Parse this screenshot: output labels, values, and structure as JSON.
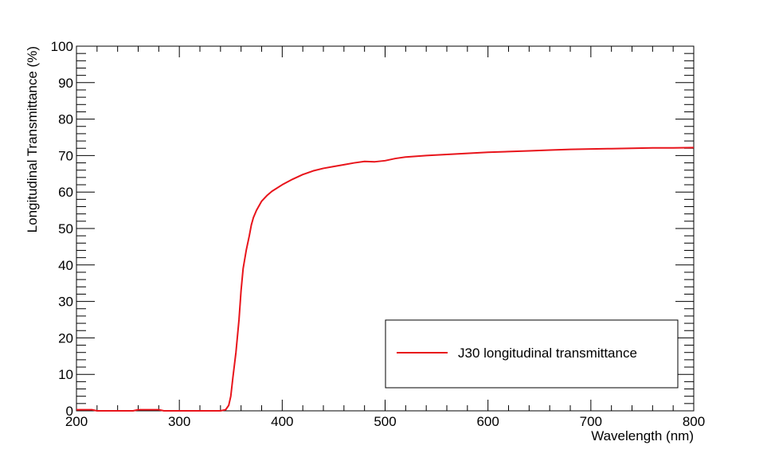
{
  "chart_data": {
    "type": "line",
    "xlabel": "Wavelength (nm)",
    "ylabel": "Longitudinal Transmittance (%)",
    "xlim": [
      200,
      800
    ],
    "ylim": [
      0,
      100
    ],
    "x_ticks": [
      200,
      300,
      400,
      500,
      600,
      700,
      800
    ],
    "y_ticks": [
      0,
      10,
      20,
      30,
      40,
      50,
      60,
      70,
      80,
      90,
      100
    ],
    "grid": false,
    "legend_position": "bottom-right",
    "series": [
      {
        "name": "J30 longitudinal transmittance",
        "color": "#e8141b",
        "x": [
          200,
          215,
          220,
          255,
          260,
          270,
          280,
          285,
          300,
          320,
          340,
          345,
          348,
          350,
          352,
          355,
          358,
          360,
          362,
          365,
          368,
          370,
          372,
          375,
          380,
          385,
          390,
          400,
          410,
          420,
          430,
          440,
          450,
          460,
          470,
          480,
          490,
          500,
          510,
          520,
          540,
          560,
          580,
          600,
          620,
          640,
          660,
          680,
          700,
          720,
          740,
          760,
          780,
          800
        ],
        "y": [
          0.3,
          0.3,
          0.0,
          0.0,
          0.3,
          0.3,
          0.3,
          0.0,
          0.0,
          0.0,
          0.0,
          0.3,
          1.5,
          4,
          9,
          16,
          25,
          33,
          39,
          44,
          48,
          51,
          53,
          55,
          57.5,
          59,
          60.2,
          62,
          63.5,
          64.8,
          65.8,
          66.5,
          67.0,
          67.5,
          68.0,
          68.4,
          68.3,
          68.6,
          69.2,
          69.6,
          70.0,
          70.3,
          70.6,
          70.9,
          71.1,
          71.3,
          71.5,
          71.7,
          71.8,
          71.9,
          72.0,
          72.1,
          72.1,
          72.2
        ]
      }
    ]
  }
}
